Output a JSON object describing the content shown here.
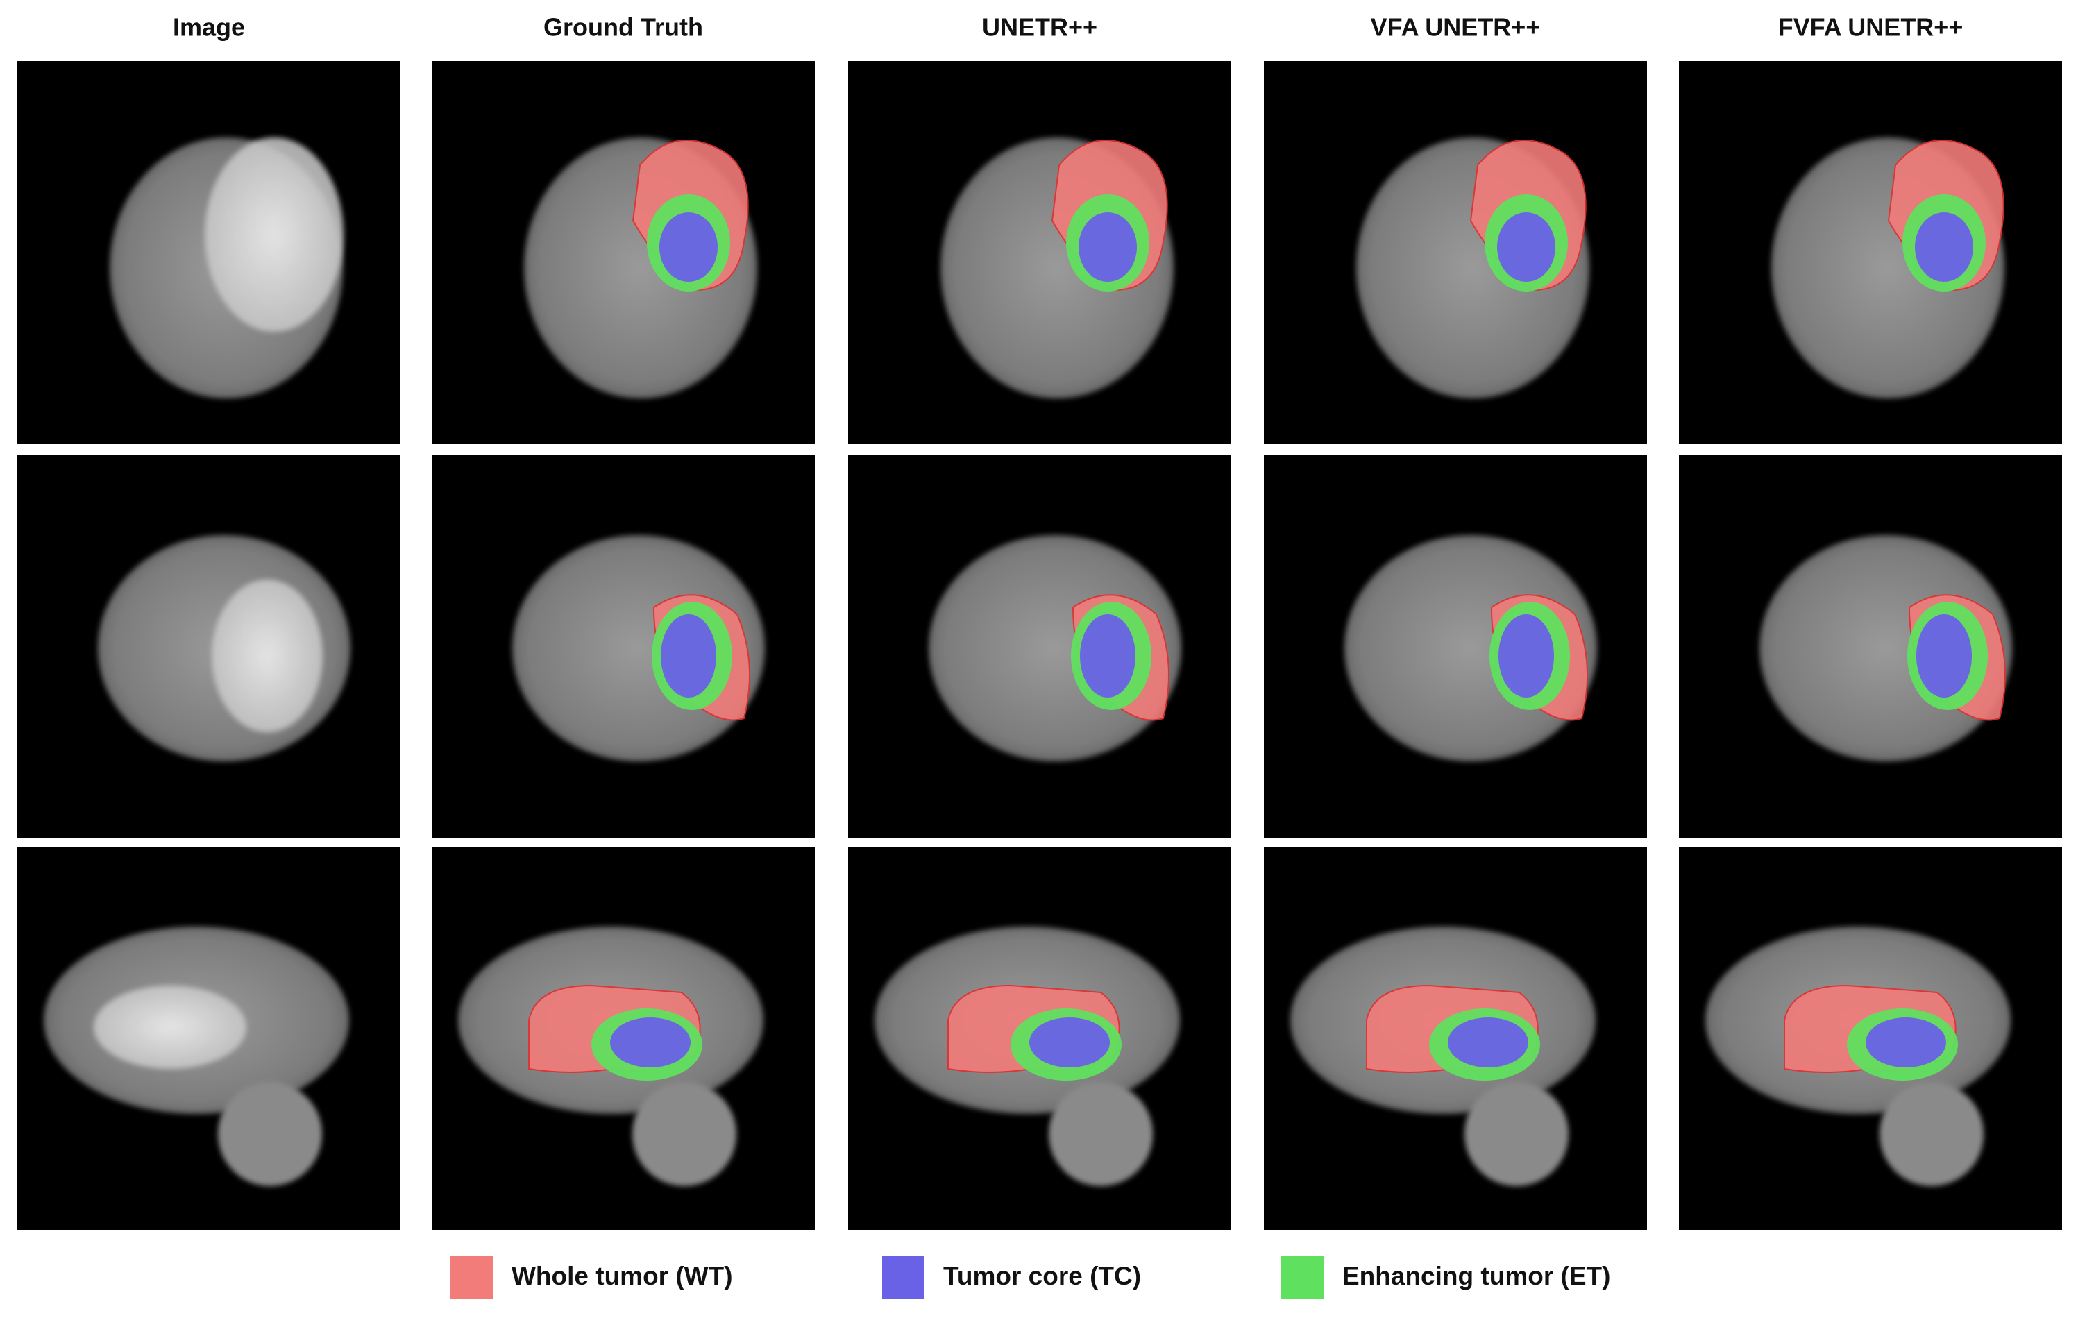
{
  "columns": [
    {
      "title": "Image"
    },
    {
      "title": "Ground Truth"
    },
    {
      "title": "UNETR++"
    },
    {
      "title": "VFA UNETR++"
    },
    {
      "title": "FVFA UNETR++"
    }
  ],
  "legend": [
    {
      "label": "Whole tumor (WT)",
      "color": "#f27c7a"
    },
    {
      "label": "Tumor core (TC)",
      "color": "#6a62e6"
    },
    {
      "label": "Enhancing tumor (ET)",
      "color": "#5fe05f"
    }
  ]
}
